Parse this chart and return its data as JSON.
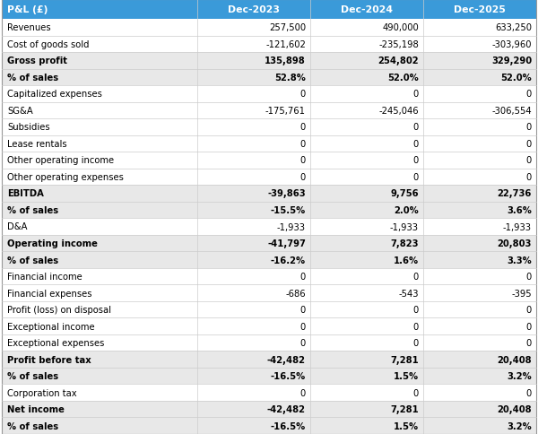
{
  "header_bg": "#3A9AD9",
  "header_text_color": "#FFFFFF",
  "bold_row_bg": "#E8E8E8",
  "normal_row_bg": "#FFFFFF",
  "border_color": "#CCCCCC",
  "text_color": "#000000",
  "col_header": "P&L (£)",
  "columns": [
    "Dec-2023",
    "Dec-2024",
    "Dec-2025"
  ],
  "rows": [
    {
      "label": "Revenues",
      "bold": false,
      "values": [
        "257,500",
        "490,000",
        "633,250"
      ]
    },
    {
      "label": "Cost of goods sold",
      "bold": false,
      "values": [
        "-121,602",
        "-235,198",
        "-303,960"
      ]
    },
    {
      "label": "Gross profit",
      "bold": true,
      "values": [
        "135,898",
        "254,802",
        "329,290"
      ]
    },
    {
      "label": "% of sales",
      "bold": true,
      "values": [
        "52.8%",
        "52.0%",
        "52.0%"
      ]
    },
    {
      "label": "Capitalized expenses",
      "bold": false,
      "values": [
        "0",
        "0",
        "0"
      ]
    },
    {
      "label": "SG&A",
      "bold": false,
      "values": [
        "-175,761",
        "-245,046",
        "-306,554"
      ]
    },
    {
      "label": "Subsidies",
      "bold": false,
      "values": [
        "0",
        "0",
        "0"
      ]
    },
    {
      "label": "Lease rentals",
      "bold": false,
      "values": [
        "0",
        "0",
        "0"
      ]
    },
    {
      "label": "Other operating income",
      "bold": false,
      "values": [
        "0",
        "0",
        "0"
      ]
    },
    {
      "label": "Other operating expenses",
      "bold": false,
      "values": [
        "0",
        "0",
        "0"
      ]
    },
    {
      "label": "EBITDA",
      "bold": true,
      "values": [
        "-39,863",
        "9,756",
        "22,736"
      ]
    },
    {
      "label": "% of sales",
      "bold": true,
      "values": [
        "-15.5%",
        "2.0%",
        "3.6%"
      ]
    },
    {
      "label": "D&A",
      "bold": false,
      "values": [
        "-1,933",
        "-1,933",
        "-1,933"
      ]
    },
    {
      "label": "Operating income",
      "bold": true,
      "values": [
        "-41,797",
        "7,823",
        "20,803"
      ]
    },
    {
      "label": "% of sales",
      "bold": true,
      "values": [
        "-16.2%",
        "1.6%",
        "3.3%"
      ]
    },
    {
      "label": "Financial income",
      "bold": false,
      "values": [
        "0",
        "0",
        "0"
      ]
    },
    {
      "label": "Financial expenses",
      "bold": false,
      "values": [
        "-686",
        "-543",
        "-395"
      ]
    },
    {
      "label": "Profit (loss) on disposal",
      "bold": false,
      "values": [
        "0",
        "0",
        "0"
      ]
    },
    {
      "label": "Exceptional income",
      "bold": false,
      "values": [
        "0",
        "0",
        "0"
      ]
    },
    {
      "label": "Exceptional expenses",
      "bold": false,
      "values": [
        "0",
        "0",
        "0"
      ]
    },
    {
      "label": "Profit before tax",
      "bold": true,
      "values": [
        "-42,482",
        "7,281",
        "20,408"
      ]
    },
    {
      "label": "% of sales",
      "bold": true,
      "values": [
        "-16.5%",
        "1.5%",
        "3.2%"
      ]
    },
    {
      "label": "Corporation tax",
      "bold": false,
      "values": [
        "0",
        "0",
        "0"
      ]
    },
    {
      "label": "Net income",
      "bold": true,
      "values": [
        "-42,482",
        "7,281",
        "20,408"
      ]
    },
    {
      "label": "% of sales",
      "bold": true,
      "values": [
        "-16.5%",
        "1.5%",
        "3.2%"
      ]
    }
  ]
}
